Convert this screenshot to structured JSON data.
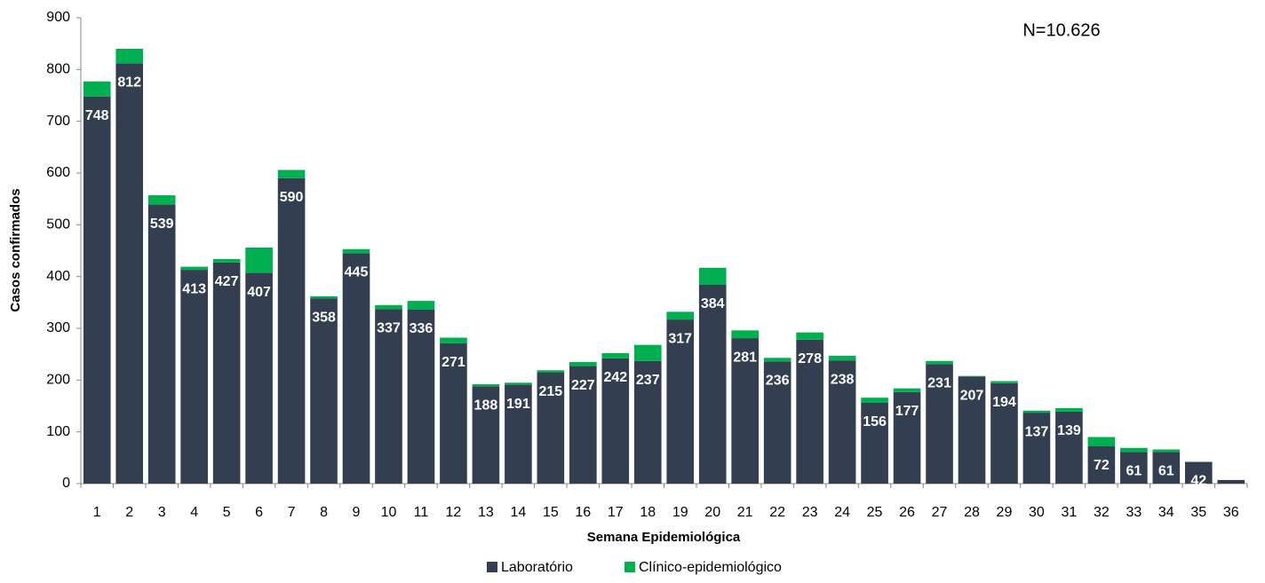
{
  "chart_data": {
    "type": "stacked_bar",
    "annotation": "N=10.626",
    "x_label": "Semana Epidemiológica",
    "y_label": "Casos confirmados",
    "categories": [
      "1",
      "2",
      "3",
      "4",
      "5",
      "6",
      "7",
      "8",
      "9",
      "10",
      "11",
      "12",
      "13",
      "14",
      "15",
      "16",
      "17",
      "18",
      "19",
      "20",
      "21",
      "22",
      "23",
      "24",
      "25",
      "26",
      "27",
      "28",
      "29",
      "30",
      "31",
      "32",
      "33",
      "34",
      "35",
      "36"
    ],
    "series": [
      {
        "name": "Laboratório",
        "color": "#333f50",
        "values": [
          748,
          812,
          539,
          413,
          427,
          407,
          590,
          358,
          445,
          337,
          336,
          271,
          188,
          191,
          215,
          227,
          242,
          237,
          317,
          384,
          281,
          236,
          278,
          238,
          156,
          177,
          231,
          207,
          194,
          137,
          139,
          72,
          61,
          61,
          42,
          7
        ]
      },
      {
        "name": "Clínico-epidemiológico",
        "color": "#00b050",
        "values": [
          29,
          28,
          18,
          6,
          7,
          49,
          16,
          4,
          8,
          8,
          17,
          11,
          4,
          4,
          4,
          8,
          10,
          31,
          15,
          33,
          15,
          7,
          14,
          9,
          10,
          7,
          6,
          1,
          4,
          4,
          7,
          18,
          8,
          5,
          0,
          0
        ]
      }
    ],
    "ylim": [
      0,
      900
    ],
    "yticks": [
      0,
      100,
      200,
      300,
      400,
      500,
      600,
      700,
      800,
      900
    ],
    "data_labels_series": 0,
    "legend": "bottom"
  }
}
